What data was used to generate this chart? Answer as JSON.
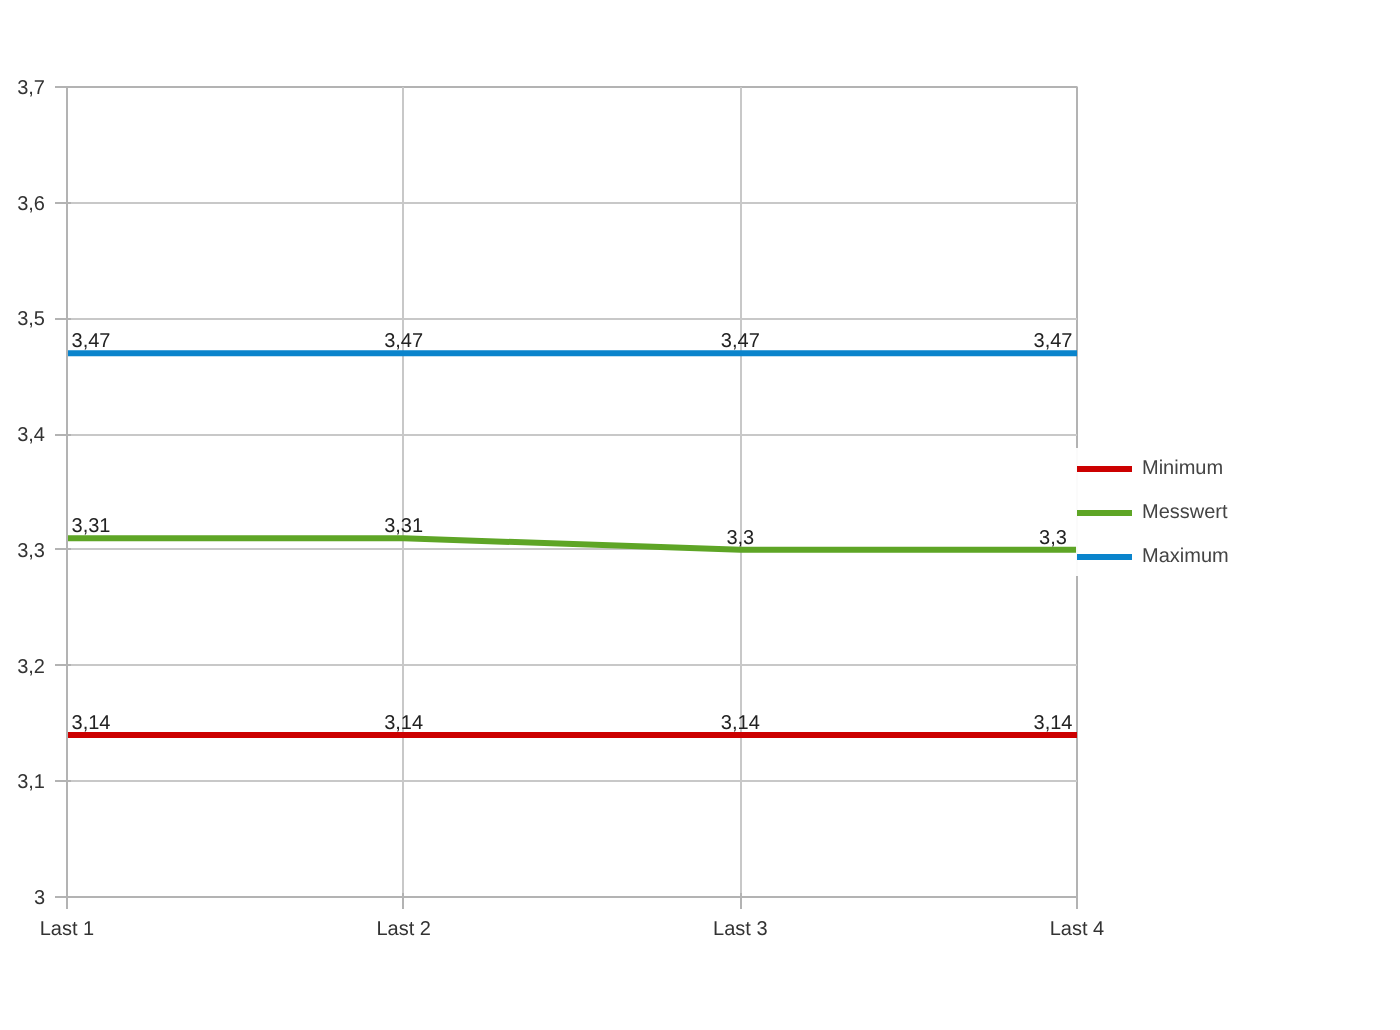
{
  "chart_data": {
    "type": "line",
    "categories": [
      "Last 1",
      "Last 2",
      "Last 3",
      "Last 4"
    ],
    "series": [
      {
        "name": "Minimum",
        "color": "#cc0000",
        "values": [
          3.14,
          3.14,
          3.14,
          3.14
        ],
        "value_labels": [
          "3,14",
          "3,14",
          "3,14",
          "3,14"
        ]
      },
      {
        "name": "Messwert",
        "color": "#5ea526",
        "values": [
          3.31,
          3.31,
          3.3,
          3.3
        ],
        "value_labels": [
          "3,31",
          "3,31",
          "3,3",
          "3,3"
        ]
      },
      {
        "name": "Maximum",
        "color": "#0a84cc",
        "values": [
          3.47,
          3.47,
          3.47,
          3.47
        ],
        "value_labels": [
          "3,47",
          "3,47",
          "3,47",
          "3,47"
        ]
      }
    ],
    "ylim": [
      3,
      3.7
    ],
    "yticks": [
      3,
      {
        "value": 3.1,
        "label": "3,1"
      },
      {
        "value": 3.2,
        "label": "3,2"
      },
      {
        "value": 3.3,
        "label": "3,3"
      },
      {
        "value": 3.4,
        "label": "3,4"
      },
      {
        "value": 3.5,
        "label": "3,5"
      },
      {
        "value": 3.6,
        "label": "3,6"
      },
      {
        "value": 3.7,
        "label": "3,7"
      }
    ],
    "grid": true,
    "legend": "right",
    "line_style": "solid"
  }
}
